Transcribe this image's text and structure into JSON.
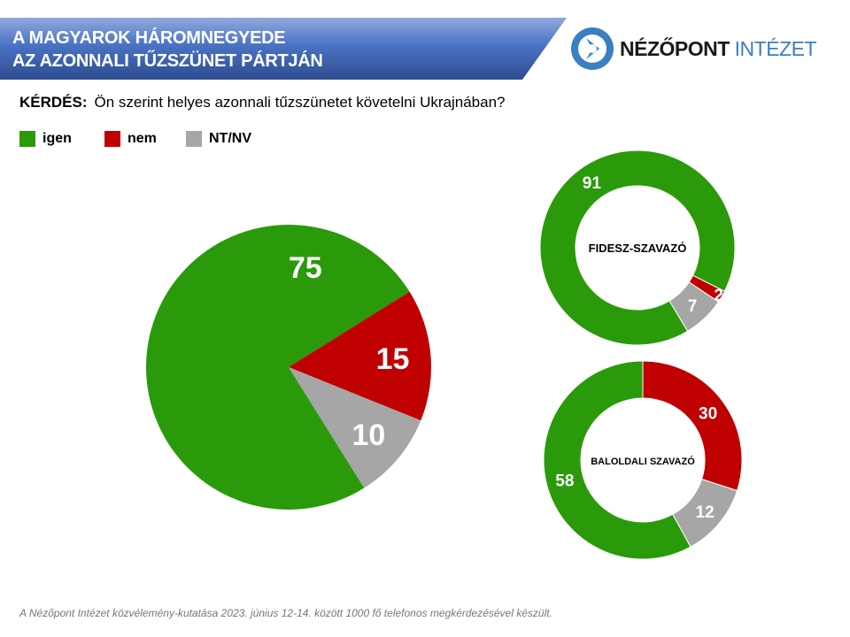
{
  "header": {
    "title_line1": "A MAGYAROK HÁROMNEGYEDE",
    "title_line2": "AZ AZONNALI TŰZSZÜNET PÁRTJÁN",
    "logo_part1": "NÉZŐPONT",
    "logo_part2": "INTÉZET"
  },
  "question": {
    "label": "KÉRDÉS:",
    "text": "Ön szerint helyes azonnali tűzszünetet követelni Ukrajnában?"
  },
  "footer": "A Nézőpont Intézet közvélemény-kutatása  2023. június 12-14. között 1000 fő telefonos megkérdezésével  készült.",
  "colors": {
    "igen": "#2a9a0a",
    "nem": "#c00000",
    "ntnv": "#a6a6a6",
    "accent": "#3a7fc1"
  },
  "chart_data": [
    {
      "type": "pie",
      "title": "",
      "categories": [
        "igen",
        "nem",
        "NT/NV"
      ],
      "values": [
        75,
        15,
        10
      ],
      "legend": "top-left"
    },
    {
      "type": "donut",
      "title": "FIDESZ-SZAVAZÓ",
      "categories": [
        "igen",
        "nem",
        "NT/NV"
      ],
      "values": [
        91,
        2,
        7
      ]
    },
    {
      "type": "donut",
      "title": "BALOLDALI SZAVAZÓ",
      "categories": [
        "igen",
        "nem",
        "NT/NV"
      ],
      "values": [
        58,
        30,
        12
      ]
    }
  ],
  "legend": [
    "igen",
    "nem",
    "NT/NV"
  ]
}
